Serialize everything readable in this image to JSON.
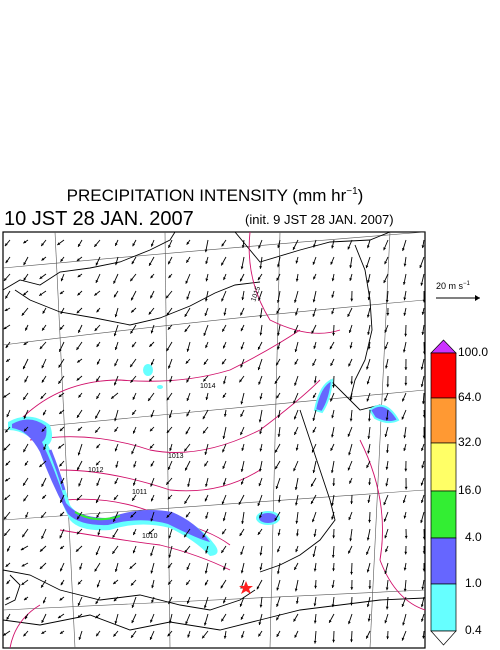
{
  "title": {
    "text": "PRECIPITATION INTENSITY (mm hr",
    "exponent": "−1",
    "close": ")"
  },
  "valid_time": "10 JST 28 JAN. 2007",
  "init_time": "(init. 9 JST 28 JAN. 2007)",
  "scale_arrow": {
    "text": "20 m s",
    "exponent": "−1"
  },
  "colorbar": {
    "labels": [
      "100.0",
      "64.0",
      "32.0",
      "16.0",
      "4.0",
      "1.0",
      "0.4"
    ]
  },
  "isobar_labels": [
    "1015",
    "1014",
    "1013",
    "1012",
    "1011",
    "1010"
  ]
}
